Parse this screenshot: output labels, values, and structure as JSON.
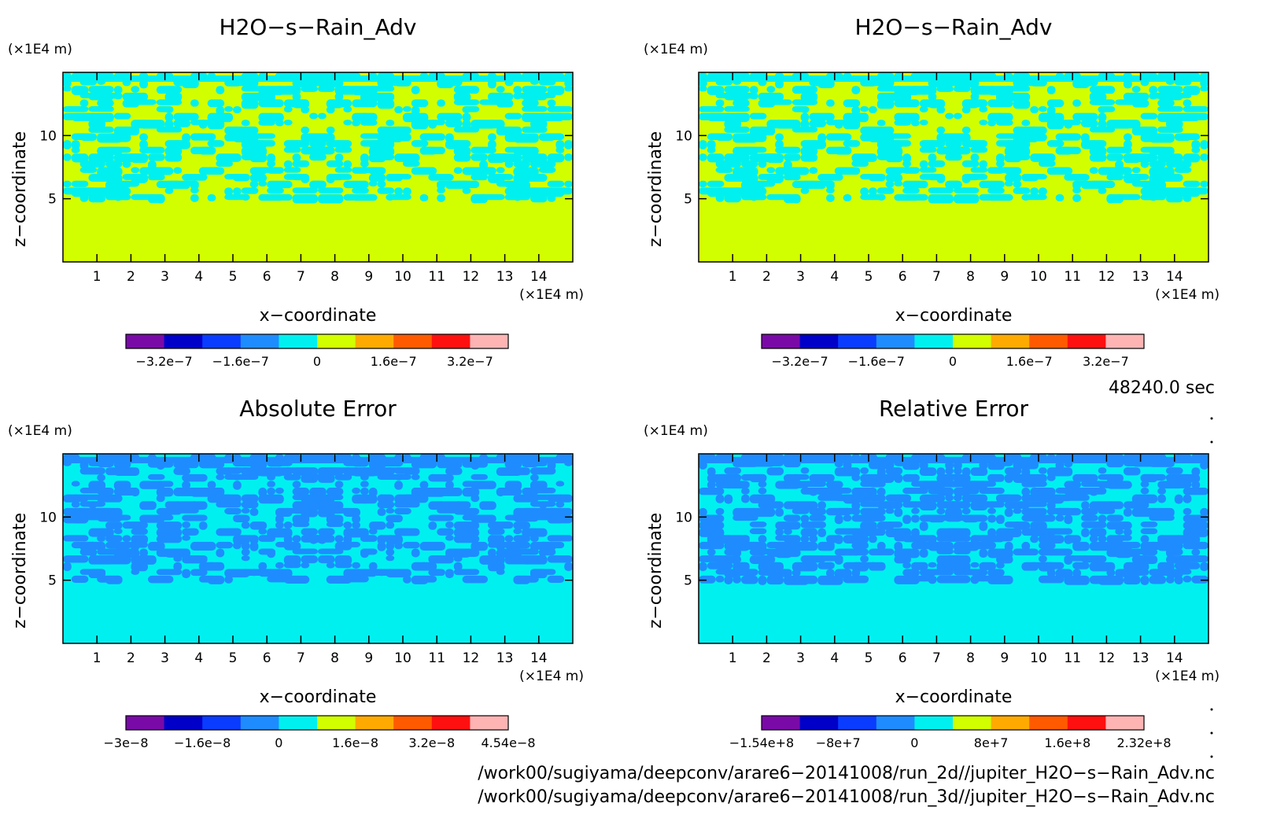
{
  "chart_data": [
    {
      "type": "heatmap",
      "title": "H2O−s−Rain_Adv",
      "xlabel": "x−coordinate",
      "ylabel": "z−coordinate",
      "x_unit": "(×1E4 m)",
      "y_unit": "(×1E4 m)",
      "xlim": [
        0,
        15
      ],
      "ylim": [
        0,
        15
      ],
      "x_ticks": [
        1,
        2,
        3,
        4,
        5,
        6,
        7,
        8,
        9,
        10,
        11,
        12,
        13,
        14
      ],
      "y_ticks": [
        5,
        10
      ],
      "colorbar": {
        "colors": [
          "#7a0aa8",
          "#0000c8",
          "#0a3cff",
          "#1e8cff",
          "#00f0f0",
          "#d2ff00",
          "#ffaa00",
          "#ff5a00",
          "#ff1010",
          "#ffb4b4"
        ],
        "labels": [
          "−3.2e−7",
          "−1.6e−7",
          "0",
          "1.6e−7",
          "3.2e−7"
        ]
      },
      "field": {
        "bg": "#d2ff00",
        "fg": "#00f0f0",
        "seed": 11,
        "density": 0.42,
        "lower_bg": "#d2ff00",
        "lower_cut": 4.8
      }
    },
    {
      "type": "heatmap",
      "title": "H2O−s−Rain_Adv",
      "xlabel": "x−coordinate",
      "ylabel": "z−coordinate",
      "x_unit": "(×1E4 m)",
      "y_unit": "(×1E4 m)",
      "xlim": [
        0,
        15
      ],
      "ylim": [
        0,
        15
      ],
      "x_ticks": [
        1,
        2,
        3,
        4,
        5,
        6,
        7,
        8,
        9,
        10,
        11,
        12,
        13,
        14
      ],
      "y_ticks": [
        5,
        10
      ],
      "colorbar": {
        "colors": [
          "#7a0aa8",
          "#0000c8",
          "#0a3cff",
          "#1e8cff",
          "#00f0f0",
          "#d2ff00",
          "#ffaa00",
          "#ff5a00",
          "#ff1010",
          "#ffb4b4"
        ],
        "labels": [
          "−3.2e−7",
          "−1.6e−7",
          "0",
          "1.6e−7",
          "3.2e−7"
        ]
      },
      "field": {
        "bg": "#d2ff00",
        "fg": "#00f0f0",
        "seed": 11,
        "density": 0.42,
        "lower_bg": "#d2ff00",
        "lower_cut": 4.8
      }
    },
    {
      "type": "heatmap",
      "title": "Absolute Error",
      "xlabel": "x−coordinate",
      "ylabel": "z−coordinate",
      "x_unit": "(×1E4 m)",
      "y_unit": "(×1E4 m)",
      "xlim": [
        0,
        15
      ],
      "ylim": [
        0,
        15
      ],
      "x_ticks": [
        1,
        2,
        3,
        4,
        5,
        6,
        7,
        8,
        9,
        10,
        11,
        12,
        13,
        14
      ],
      "y_ticks": [
        5,
        10
      ],
      "colorbar": {
        "colors": [
          "#7a0aa8",
          "#0000c8",
          "#0a3cff",
          "#1e8cff",
          "#00f0f0",
          "#d2ff00",
          "#ffaa00",
          "#ff5a00",
          "#ff1010",
          "#ffb4b4"
        ],
        "labels": [
          "−3e−8",
          "−1.6e−8",
          "0",
          "1.6e−8",
          "3.2e−8",
          "4.54e−8"
        ]
      },
      "field": {
        "bg": "#00f0f0",
        "fg": "#1e8cff",
        "seed": 23,
        "density": 0.45,
        "lower_bg": "#00f0f0",
        "lower_cut": 4.8
      }
    },
    {
      "type": "heatmap",
      "title": "Relative Error",
      "xlabel": "x−coordinate",
      "ylabel": "z−coordinate",
      "x_unit": "(×1E4 m)",
      "y_unit": "(×1E4 m)",
      "xlim": [
        0,
        15
      ],
      "ylim": [
        0,
        15
      ],
      "x_ticks": [
        1,
        2,
        3,
        4,
        5,
        6,
        7,
        8,
        9,
        10,
        11,
        12,
        13,
        14
      ],
      "y_ticks": [
        5,
        10
      ],
      "colorbar": {
        "colors": [
          "#7a0aa8",
          "#0000c8",
          "#0a3cff",
          "#1e8cff",
          "#00f0f0",
          "#d2ff00",
          "#ffaa00",
          "#ff5a00",
          "#ff1010",
          "#ffb4b4"
        ],
        "labels": [
          "−1.54e+8",
          "−8e+7",
          "0",
          "8e+7",
          "1.6e+8",
          "2.32e+8"
        ]
      },
      "field": {
        "bg": "#00f0f0",
        "fg": "#1e8cff",
        "seed": 37,
        "density": 0.5,
        "lower_bg": "#00f0f0",
        "lower_cut": 4.8
      }
    }
  ],
  "time_label": "48240.0 sec",
  "file_lines": [
    "/work00/sugiyama/deepconv/arare6−20141008/run_2d//jupiter_H2O−s−Rain_Adv.nc",
    "/work00/sugiyama/deepconv/arare6−20141008/run_3d//jupiter_H2O−s−Rain_Adv.nc"
  ]
}
